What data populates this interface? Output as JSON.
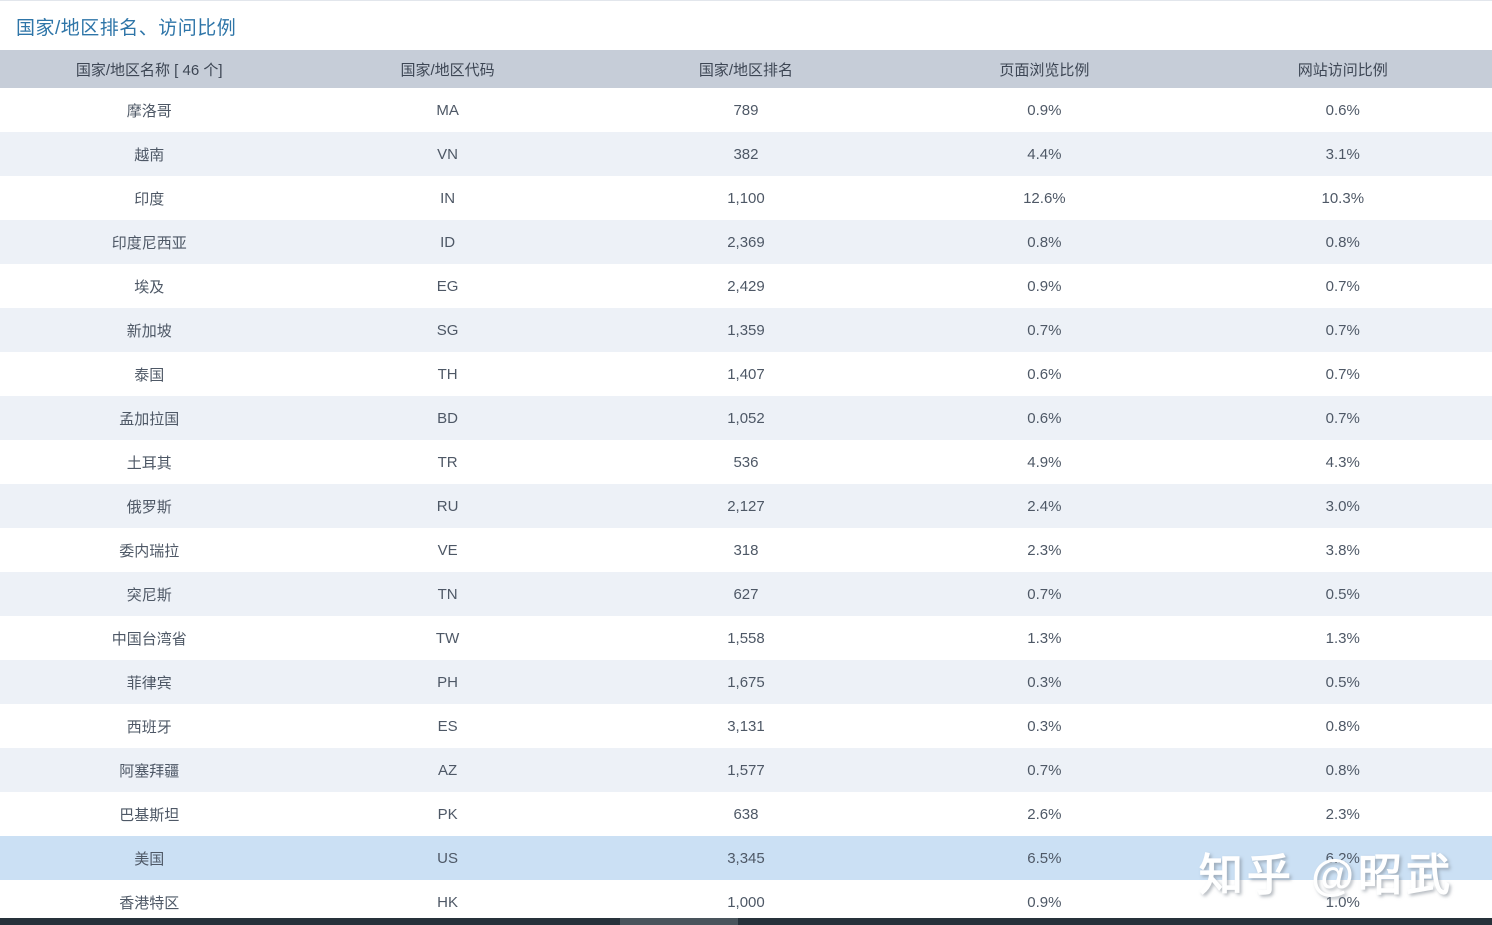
{
  "page": {
    "title": "国家/地区排名、访问比例",
    "watermark": "知乎 @昭武"
  },
  "colors": {
    "title_accent": "#2e75a8",
    "header_bg": "#c6cdd8",
    "alt_row_bg": "#edf1f7",
    "highlight_row_bg": "#cbe0f4",
    "cell_text": "#4e5866",
    "bottom_bar": "#26313a"
  },
  "table": {
    "columns": [
      "国家/地区名称 [ 46 个]",
      "国家/地区代码",
      "国家/地区排名",
      "页面浏览比例",
      "网站访问比例"
    ],
    "row_fields": [
      "name",
      "code",
      "rank",
      "pageview_pct",
      "visit_pct"
    ],
    "highlighted_row_index": 17,
    "rows": [
      {
        "name": "摩洛哥",
        "code": "MA",
        "rank": "789",
        "pageview_pct": "0.9%",
        "visit_pct": "0.6%"
      },
      {
        "name": "越南",
        "code": "VN",
        "rank": "382",
        "pageview_pct": "4.4%",
        "visit_pct": "3.1%"
      },
      {
        "name": "印度",
        "code": "IN",
        "rank": "1,100",
        "pageview_pct": "12.6%",
        "visit_pct": "10.3%"
      },
      {
        "name": "印度尼西亚",
        "code": "ID",
        "rank": "2,369",
        "pageview_pct": "0.8%",
        "visit_pct": "0.8%"
      },
      {
        "name": "埃及",
        "code": "EG",
        "rank": "2,429",
        "pageview_pct": "0.9%",
        "visit_pct": "0.7%"
      },
      {
        "name": "新加坡",
        "code": "SG",
        "rank": "1,359",
        "pageview_pct": "0.7%",
        "visit_pct": "0.7%"
      },
      {
        "name": "泰国",
        "code": "TH",
        "rank": "1,407",
        "pageview_pct": "0.6%",
        "visit_pct": "0.7%"
      },
      {
        "name": "孟加拉国",
        "code": "BD",
        "rank": "1,052",
        "pageview_pct": "0.6%",
        "visit_pct": "0.7%"
      },
      {
        "name": "土耳其",
        "code": "TR",
        "rank": "536",
        "pageview_pct": "4.9%",
        "visit_pct": "4.3%"
      },
      {
        "name": "俄罗斯",
        "code": "RU",
        "rank": "2,127",
        "pageview_pct": "2.4%",
        "visit_pct": "3.0%"
      },
      {
        "name": "委内瑞拉",
        "code": "VE",
        "rank": "318",
        "pageview_pct": "2.3%",
        "visit_pct": "3.8%"
      },
      {
        "name": "突尼斯",
        "code": "TN",
        "rank": "627",
        "pageview_pct": "0.7%",
        "visit_pct": "0.5%"
      },
      {
        "name": "中国台湾省",
        "code": "TW",
        "rank": "1,558",
        "pageview_pct": "1.3%",
        "visit_pct": "1.3%"
      },
      {
        "name": "菲律宾",
        "code": "PH",
        "rank": "1,675",
        "pageview_pct": "0.3%",
        "visit_pct": "0.5%"
      },
      {
        "name": "西班牙",
        "code": "ES",
        "rank": "3,131",
        "pageview_pct": "0.3%",
        "visit_pct": "0.8%"
      },
      {
        "name": "阿塞拜疆",
        "code": "AZ",
        "rank": "1,577",
        "pageview_pct": "0.7%",
        "visit_pct": "0.8%"
      },
      {
        "name": "巴基斯坦",
        "code": "PK",
        "rank": "638",
        "pageview_pct": "2.6%",
        "visit_pct": "2.3%"
      },
      {
        "name": "美国",
        "code": "US",
        "rank": "3,345",
        "pageview_pct": "6.5%",
        "visit_pct": "6.2%"
      },
      {
        "name": "香港特区",
        "code": "HK",
        "rank": "1,000",
        "pageview_pct": "0.9%",
        "visit_pct": "1.0%"
      }
    ]
  }
}
